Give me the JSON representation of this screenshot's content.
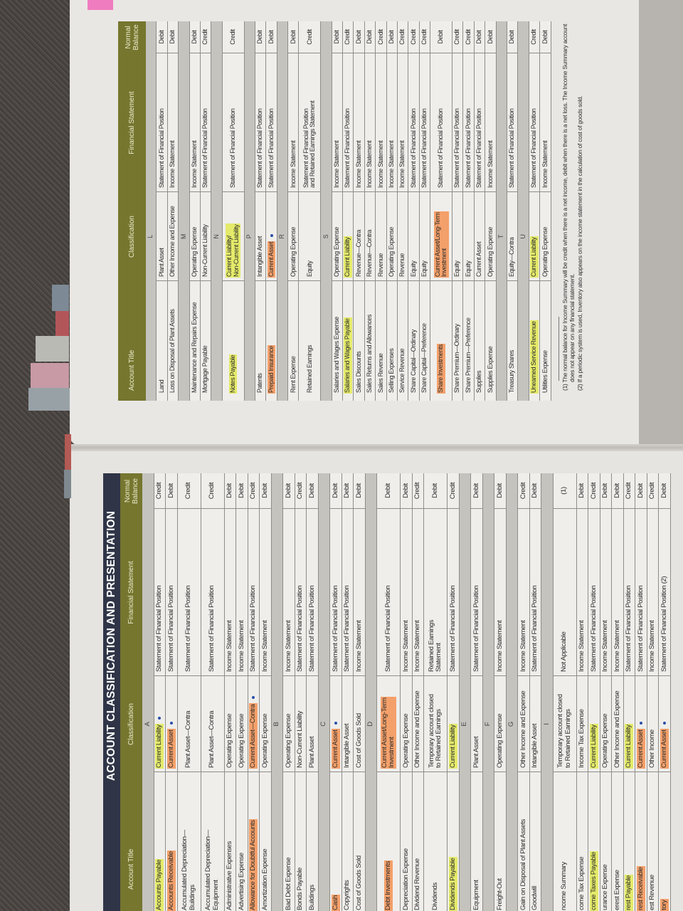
{
  "highlight_colors": {
    "yellow": "#e4ea6a",
    "orange": "#f4a06a",
    "pen": "#2a4fa8"
  },
  "pages": [
    {
      "title": "ACCOUNT CLASSIFICATION AND PRESENTATION",
      "headers": {
        "account": "Account Title",
        "classification": "Classification",
        "statement": "Financial Statement",
        "balance": "Normal\nBalance"
      },
      "sections": [
        {
          "letter": "A",
          "rows": [
            {
              "account": "Accounts Payable",
              "classification": "Current Liability",
              "statement": "Statement of Financial Position",
              "balance": "Credit",
              "highlight": "yellow",
              "pen_dot": true
            },
            {
              "account": "Accounts Receivable",
              "classification": "Current Asset",
              "statement": "Statement of Financial Position",
              "balance": "Debit",
              "highlight": "orange",
              "pen_dot": true
            },
            {
              "account": "Accumulated Depreciation—\nBuildings",
              "classification": "Plant Asset—Contra",
              "statement": "Statement of Financial Position",
              "balance": "Credit"
            },
            {
              "account": "Accumulated Depreciation—\nEquipment",
              "classification": "Plant Asset—Contra",
              "statement": "Statement of Financial Position",
              "balance": "Credit"
            },
            {
              "account": "Administrative Expenses",
              "classification": "Operating Expense",
              "statement": "Income Statement",
              "balance": "Debit"
            },
            {
              "account": "Advertising Expense",
              "classification": "Operating Expense",
              "statement": "Income Statement",
              "balance": "Debit"
            },
            {
              "account": "Allowance for Doubtful Accounts",
              "classification": "Current Asset—Contra",
              "statement": "Statement of Financial Position",
              "balance": "Credit",
              "highlight": "orange",
              "pen_dot": true
            },
            {
              "account": "Amortization Expense",
              "classification": "Operating Expense",
              "statement": "Income Statement",
              "balance": "Debit"
            }
          ]
        },
        {
          "letter": "B",
          "rows": [
            {
              "account": "Bad Debt Expense",
              "classification": "Operating Expense",
              "statement": "Income Statement",
              "balance": "Debit"
            },
            {
              "account": "Bonds Payable",
              "classification": "Non-Current Liability",
              "statement": "Statement of Financial Position",
              "balance": "Credit"
            },
            {
              "account": "Buildings",
              "classification": "Plant Asset",
              "statement": "Statement of Financial Position",
              "balance": "Debit"
            }
          ]
        },
        {
          "letter": "C",
          "rows": [
            {
              "account": "Cash",
              "classification": "Current Asset",
              "statement": "Statement of Financial Position",
              "balance": "Debit",
              "highlight": "orange",
              "pen_dot": true
            },
            {
              "account": "Copyrights",
              "classification": "Intangible Asset",
              "statement": "Statement of Financial Position",
              "balance": "Debit"
            },
            {
              "account": "Cost of Goods Sold",
              "classification": "Cost of Goods Sold",
              "statement": "Income Statement",
              "balance": "Debit"
            }
          ]
        },
        {
          "letter": "D",
          "rows": [
            {
              "account": "Debt Investments",
              "classification": "Current Asset/Long-Term\nInvestment",
              "statement": "Statement of Financial Position",
              "balance": "Debit",
              "highlight": "orange"
            },
            {
              "account": "Depreciation Expense",
              "classification": "Operating Expense",
              "statement": "Income Statement",
              "balance": "Debit"
            },
            {
              "account": "Dividend Revenue",
              "classification": "Other Income and Expense",
              "statement": "Income Statement",
              "balance": "Credit"
            },
            {
              "account": "Dividends",
              "classification": "Temporary account closed\nto Retained Earnings",
              "statement": "Retained Earnings\nStatement",
              "balance": "Debit"
            },
            {
              "account": "Dividends Payable",
              "classification": "Current Liability",
              "statement": "Statement of Financial Position",
              "balance": "Credit",
              "highlight": "yellow"
            }
          ]
        },
        {
          "letter": "E",
          "rows": [
            {
              "account": "Equipment",
              "classification": "Plant Asset",
              "statement": "Statement of Financial Position",
              "balance": "Debit"
            }
          ]
        },
        {
          "letter": "F",
          "rows": [
            {
              "account": "Freight-Out",
              "classification": "Operating Expense",
              "statement": "Income Statement",
              "balance": "Debit"
            }
          ]
        },
        {
          "letter": "G",
          "rows": [
            {
              "account": "Gain on Disposal of Plant Assets",
              "classification": "Other Income and Expense",
              "statement": "Income Statement",
              "balance": "Credit"
            },
            {
              "account": "Goodwill",
              "classification": "Intangible Asset",
              "statement": "Statement of Financial Position",
              "balance": "Debit"
            }
          ]
        },
        {
          "letter": "I",
          "rows": [
            {
              "account": "ncome Summary",
              "classification": "Temporary account closed\nto Retained Earnings",
              "statement": "Not Applicable",
              "balance": "(1)"
            },
            {
              "account": "come Tax Expense",
              "classification": "Income Tax Expense",
              "statement": "Income Statement",
              "balance": "Debit"
            },
            {
              "account": "come Taxes Payable",
              "classification": "Current Liability",
              "statement": "Statement of Financial Position",
              "balance": "Credit",
              "highlight": "yellow"
            },
            {
              "account": "urance Expense",
              "classification": "Operating Expense",
              "statement": "Income Statement",
              "balance": "Debit"
            },
            {
              "account": "erest Expense",
              "classification": "Other Income and Expense",
              "statement": "Income Statement",
              "balance": "Debit"
            },
            {
              "account": "rest Payable",
              "classification": "Current Liability",
              "statement": "Statement of Financial Position",
              "balance": "Credit",
              "highlight": "yellow"
            },
            {
              "account": "rest Receivable",
              "classification": "Current Asset",
              "statement": "Statement of Financial Position",
              "balance": "Debit",
              "highlight": "orange",
              "pen_dot": true
            },
            {
              "account": "est Revenue",
              "classification": "Other Income",
              "statement": "Income Statement",
              "balance": "Credit"
            },
            {
              "account": "tory",
              "classification": "Current Asset",
              "statement": "Statement of Financial Position (2)",
              "balance": "Debit",
              "highlight": "orange",
              "pen_dot": true
            }
          ]
        }
      ]
    },
    {
      "headers": {
        "account": "Account Title",
        "classification": "Classification",
        "statement": "Financial Statement",
        "balance": "Normal\nBalance"
      },
      "sections": [
        {
          "letter": "L",
          "rows": [
            {
              "account": "Land",
              "classification": "Plant Asset",
              "statement": "Statement of Financial Position",
              "balance": "Debit"
            },
            {
              "account": "Loss on Disposal of Plant Assets",
              "classification": "Other Income and Expense",
              "statement": "Income Statement",
              "balance": "Debit"
            }
          ]
        },
        {
          "letter": "M",
          "rows": [
            {
              "account": "Maintenance and Repairs Expense",
              "classification": "Operating Expense",
              "statement": "Income Statement",
              "balance": "Debit"
            },
            {
              "account": "Mortgage Payable",
              "classification": "Non-Current Liability",
              "statement": "Statement of Financial Position",
              "balance": "Credit"
            }
          ]
        },
        {
          "letter": "N",
          "rows": [
            {
              "account": "Notes Payable",
              "classification": "Current Liability/\nNon-Current Liability",
              "statement": "Statement of Financial Position",
              "balance": "Credit",
              "highlight": "yellow"
            }
          ]
        },
        {
          "letter": "P",
          "rows": [
            {
              "account": "Patents",
              "classification": "Intangible Asset",
              "statement": "Statement of Financial Position",
              "balance": "Debit"
            },
            {
              "account": "Prepaid Insurance",
              "classification": "Current Asset",
              "statement": "Statement of Financial Position",
              "balance": "Debit",
              "highlight": "orange",
              "pen_dot": true
            }
          ]
        },
        {
          "letter": "R",
          "rows": [
            {
              "account": "Rent Expense",
              "classification": "Operating Expense",
              "statement": "Income Statement",
              "balance": "Debit"
            },
            {
              "account": "Retained Earnings",
              "classification": "Equity",
              "statement": "Statement of Financial Position\nand Retained Earnings Statement",
              "balance": "Credit"
            }
          ]
        },
        {
          "letter": "S",
          "rows": [
            {
              "account": "Salaries and Wages Expense",
              "classification": "Operating Expense",
              "statement": "Income Statement",
              "balance": "Debit"
            },
            {
              "account": "Salaries and Wages Payable",
              "classification": "Current Liability",
              "statement": "Statement of Financial Position",
              "balance": "Credit",
              "highlight": "yellow"
            },
            {
              "account": "Sales Discounts",
              "classification": "Revenue—Contra",
              "statement": "Income Statement",
              "balance": "Debit"
            },
            {
              "account": "Sales Returns and Allowances",
              "classification": "Revenue—Contra",
              "statement": "Income Statement",
              "balance": "Debit"
            },
            {
              "account": "Sales Revenue",
              "classification": "Revenue",
              "statement": "Income Statement",
              "balance": "Credit"
            },
            {
              "account": "Selling Expenses",
              "classification": "Operating Expense",
              "statement": "Income Statement",
              "balance": "Debit"
            },
            {
              "account": "Service Revenue",
              "classification": "Revenue",
              "statement": "Income Statement",
              "balance": "Credit"
            },
            {
              "account": "Share Capital—Ordinary",
              "classification": "Equity",
              "statement": "Statement of Financial Position",
              "balance": "Credit"
            },
            {
              "account": "Share Capital—Preference",
              "classification": "Equity",
              "statement": "Statement of Financial Position",
              "balance": "Credit"
            },
            {
              "account": "Share Investments",
              "classification": "Current Asset/Long-Term\nInvestment",
              "statement": "Statement of Financial Position",
              "balance": "Debit",
              "highlight": "orange"
            },
            {
              "account": "Share Premium—Ordinary",
              "classification": "Equity",
              "statement": "Statement of Financial Position",
              "balance": "Credit"
            },
            {
              "account": "Share Premium—Preference",
              "classification": "Equity",
              "statement": "Statement of Financial Position",
              "balance": "Credit"
            },
            {
              "account": "Supplies",
              "classification": "Current Asset",
              "statement": "Statement of Financial Position",
              "balance": "Debit"
            },
            {
              "account": "Supplies Expense",
              "classification": "Operating Expense",
              "statement": "Income Statement",
              "balance": "Debit"
            }
          ]
        },
        {
          "letter": "T",
          "rows": [
            {
              "account": "Treasury Shares",
              "classification": "Equity—Contra",
              "statement": "Statement of Financial Position",
              "balance": "Debit"
            }
          ]
        },
        {
          "letter": "U",
          "rows": [
            {
              "account": "Unearned Service Revenue",
              "classification": "Current Liability",
              "statement": "Statement of Financial Position",
              "balance": "Credit",
              "highlight": "yellow"
            },
            {
              "account": "Utilities Expense",
              "classification": "Operating Expense",
              "statement": "Income Statement",
              "balance": "Debit"
            }
          ]
        }
      ],
      "footnotes": [
        "(1) The normal balance for Income Summary will be credit when there is a net income, debit when there is a net loss. The Income Summary account does not appear on any financial statement.",
        "(2) If a periodic system is used, Inventory also appears on the income statement in the calculation of cost of goods sold."
      ]
    }
  ]
}
